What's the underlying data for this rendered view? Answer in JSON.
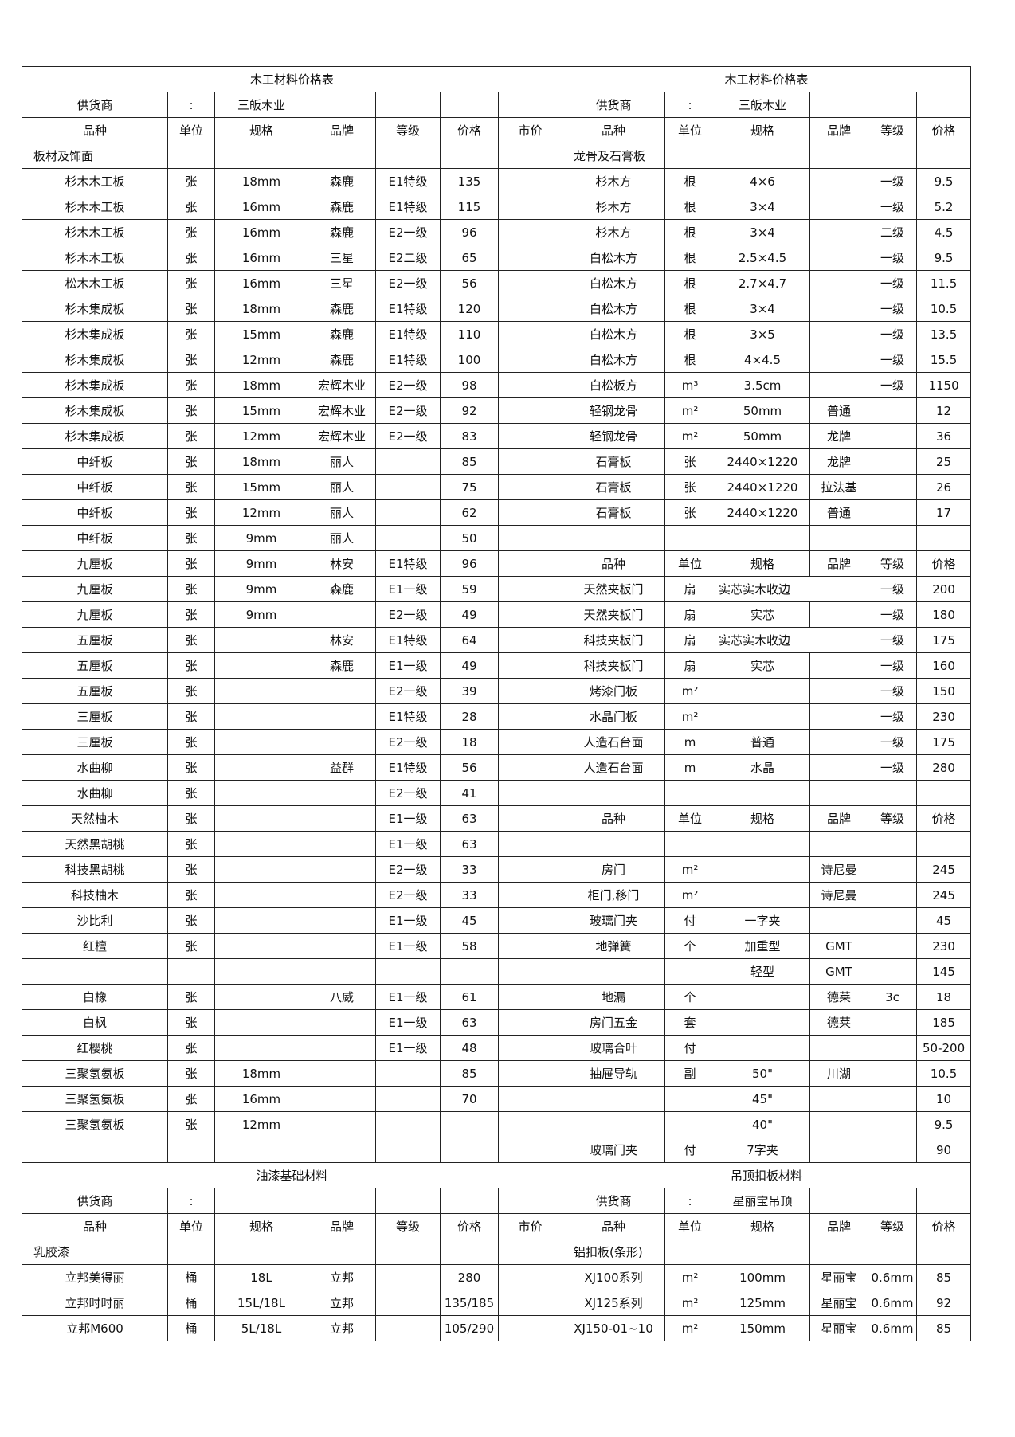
{
  "blocks": [
    {
      "title": "木工材料价格表",
      "rows": [
        [
          "供货商",
          ":",
          "三皈木业",
          null,
          null,
          null,
          null
        ],
        [
          "品种",
          "单位",
          "规格",
          "品牌",
          "等级",
          "价格",
          "市价"
        ],
        [
          "板材及饰面",
          null,
          null,
          null,
          null,
          null,
          null
        ],
        [
          "杉木木工板",
          "张",
          "18mm",
          "森鹿",
          "E1特级",
          135,
          null
        ],
        [
          "杉木木工板",
          "张",
          "16mm",
          "森鹿",
          "E1特级",
          115,
          null
        ],
        [
          "杉木木工板",
          "张",
          "16mm",
          "森鹿",
          "E2一级",
          96,
          null
        ],
        [
          "杉木木工板",
          "张",
          "16mm",
          "三星",
          "E2二级",
          65,
          null
        ],
        [
          "松木木工板",
          "张",
          "16mm",
          "三星",
          "E2一级",
          56,
          null
        ],
        [
          "杉木集成板",
          "张",
          "18mm",
          "森鹿",
          "E1特级",
          120,
          null
        ],
        [
          "杉木集成板",
          "张",
          "15mm",
          "森鹿",
          "E1特级",
          110,
          null
        ],
        [
          "杉木集成板",
          "张",
          "12mm",
          "森鹿",
          "E1特级",
          100,
          null
        ],
        [
          "杉木集成板",
          "张",
          "18mm",
          "宏辉木业",
          "E2一级",
          98,
          null
        ],
        [
          "杉木集成板",
          "张",
          "15mm",
          "宏辉木业",
          "E2一级",
          92,
          null
        ],
        [
          "杉木集成板",
          "张",
          "12mm",
          "宏辉木业",
          "E2一级",
          83,
          null
        ],
        [
          "中纤板",
          "张",
          "18mm",
          "丽人",
          null,
          85,
          null
        ],
        [
          "中纤板",
          "张",
          "15mm",
          "丽人",
          null,
          75,
          null
        ],
        [
          "中纤板",
          "张",
          "12mm",
          "丽人",
          null,
          62,
          null
        ],
        [
          "中纤板",
          "张",
          "9mm",
          "丽人",
          null,
          50,
          null
        ],
        [
          "九厘板",
          "张",
          "9mm",
          "林安",
          "E1特级",
          96,
          null
        ],
        [
          "九厘板",
          "张",
          "9mm",
          "森鹿",
          "E1一级",
          59,
          null
        ],
        [
          "九厘板",
          "张",
          "9mm",
          null,
          "E2一级",
          49,
          null
        ],
        [
          "五厘板",
          "张",
          null,
          "林安",
          "E1特级",
          64,
          null
        ],
        [
          "五厘板",
          "张",
          null,
          "森鹿",
          "E1一级",
          49,
          null
        ],
        [
          "五厘板",
          "张",
          null,
          null,
          "E2一级",
          39,
          null
        ],
        [
          "三厘板",
          "张",
          null,
          null,
          "E1特级",
          28,
          null
        ],
        [
          "三厘板",
          "张",
          null,
          null,
          "E2一级",
          18,
          null
        ],
        [
          "水曲柳",
          "张",
          null,
          "益群",
          "E1特级",
          56,
          null
        ],
        [
          "水曲柳",
          "张",
          null,
          null,
          "E2一级",
          41,
          null
        ],
        [
          "天然柚木",
          "张",
          null,
          null,
          "E1一级",
          63,
          null
        ],
        [
          "天然黑胡桃",
          "张",
          null,
          null,
          "E1一级",
          63,
          null
        ],
        [
          "科技黑胡桃",
          "张",
          null,
          null,
          "E2一级",
          33,
          null
        ],
        [
          "科技柚木",
          "张",
          null,
          null,
          "E2一级",
          33,
          null
        ],
        [
          "沙比利",
          "张",
          null,
          null,
          "E1一级",
          45,
          null
        ],
        [
          "红檀",
          "张",
          null,
          null,
          "E1一级",
          58,
          null
        ],
        [
          null,
          null,
          null,
          null,
          null,
          null,
          null
        ],
        [
          "白橡",
          "张",
          null,
          "八威",
          "E1一级",
          61,
          null
        ],
        [
          "白枫",
          "张",
          null,
          null,
          "E1一级",
          63,
          null
        ],
        [
          "红樱桃",
          "张",
          null,
          null,
          "E1一级",
          48,
          null
        ],
        [
          "三聚氢氨板",
          "张",
          "18mm",
          null,
          null,
          85,
          null
        ],
        [
          "三聚氢氨板",
          "张",
          "16mm",
          null,
          null,
          70,
          null
        ],
        [
          "三聚氢氨板",
          "张",
          "12mm",
          null,
          null,
          null,
          null
        ],
        [
          null,
          null,
          null,
          null,
          null,
          null,
          null
        ]
      ]
    },
    {
      "title": "木工材料价格表",
      "rows": [
        [
          "供货商",
          ":",
          "三皈木业",
          null,
          null,
          null
        ],
        [
          "品种",
          "单位",
          "规格",
          "品牌",
          "等级",
          "价格"
        ],
        [
          "龙骨及石膏板",
          null,
          null,
          null,
          null,
          null
        ],
        [
          "杉木方",
          "根",
          "4×6",
          null,
          "一级",
          9.5
        ],
        [
          "杉木方",
          "根",
          "3×4",
          null,
          "一级",
          5.2
        ],
        [
          "杉木方",
          "根",
          "3×4",
          null,
          "二级",
          4.5
        ],
        [
          "白松木方",
          "根",
          "2.5×4.5",
          null,
          "一级",
          9.5
        ],
        [
          "白松木方",
          "根",
          "2.7×4.7",
          null,
          "一级",
          11.5
        ],
        [
          "白松木方",
          "根",
          "3×4",
          null,
          "一级",
          10.5
        ],
        [
          "白松木方",
          "根",
          "3×5",
          null,
          "一级",
          13.5
        ],
        [
          "白松木方",
          "根",
          "4×4.5",
          null,
          "一级",
          15.5
        ],
        [
          "白松板方",
          "m³",
          "3.5cm",
          null,
          "一级",
          1150
        ],
        [
          "轻钢龙骨",
          "m²",
          "50mm",
          "普通",
          null,
          12
        ],
        [
          "轻钢龙骨",
          "m²",
          "50mm",
          "龙牌",
          null,
          36
        ],
        [
          "石膏板",
          "张",
          "2440×1220",
          "龙牌",
          null,
          25
        ],
        [
          "石膏板",
          "张",
          "2440×1220",
          "拉法基",
          null,
          26
        ],
        [
          "石膏板",
          "张",
          "2440×1220",
          "普通",
          null,
          17
        ],
        [
          null,
          null,
          null,
          null,
          null,
          null
        ],
        [
          "品种",
          "单位",
          "规格",
          "品牌",
          "等级",
          "价格"
        ],
        [
          "天然夹板门",
          "扇",
          {
            "text": "实芯实木收边",
            "colspan": 2
          },
          "一级",
          200
        ],
        [
          "天然夹板门",
          "扇",
          "实芯",
          null,
          "一级",
          180
        ],
        [
          "科技夹板门",
          "扇",
          {
            "text": "实芯实木收边",
            "colspan": 2
          },
          "一级",
          175
        ],
        [
          "科技夹板门",
          "扇",
          "实芯",
          null,
          "一级",
          160
        ],
        [
          "烤漆门板",
          "m²",
          null,
          null,
          "一级",
          150
        ],
        [
          "水晶门板",
          "m²",
          null,
          null,
          "一级",
          230
        ],
        [
          "人造石台面",
          "m",
          "普通",
          null,
          "一级",
          175
        ],
        [
          "人造石台面",
          "m",
          "水晶",
          null,
          "一级",
          280
        ],
        [
          null,
          null,
          null,
          null,
          null,
          null
        ],
        [
          "品种",
          "单位",
          "规格",
          "品牌",
          "等级",
          "价格"
        ],
        [
          null,
          null,
          null,
          null,
          null,
          null
        ],
        [
          "房门",
          "m²",
          null,
          "诗尼曼",
          null,
          245
        ],
        [
          "柜门,移门",
          "m²",
          null,
          "诗尼曼",
          null,
          245
        ],
        [
          "玻璃门夹",
          "付",
          "一字夹",
          null,
          null,
          45
        ],
        [
          "地弹簧",
          "个",
          "加重型",
          "GMT",
          null,
          230
        ],
        [
          null,
          null,
          "轻型",
          "GMT",
          null,
          145
        ],
        [
          "地漏",
          "个",
          null,
          "德莱",
          "3c",
          18
        ],
        [
          "房门五金",
          "套",
          null,
          "德莱",
          null,
          185
        ],
        [
          "玻璃合叶",
          "付",
          null,
          null,
          null,
          "50-200"
        ],
        [
          "抽屉导轨",
          "副",
          "50\"",
          "川湖",
          null,
          10.5
        ],
        [
          null,
          null,
          "45\"",
          null,
          null,
          10
        ],
        [
          null,
          null,
          "40\"",
          null,
          null,
          9.5
        ],
        [
          "玻璃门夹",
          "付",
          "7字夹",
          null,
          null,
          90
        ]
      ]
    },
    {
      "title": "油漆基础材料",
      "rows": [
        [
          "供货商",
          ":",
          null,
          null,
          null,
          null,
          null
        ],
        [
          "品种",
          "单位",
          "规格",
          "品牌",
          "等级",
          "价格",
          "市价"
        ],
        [
          "乳胶漆",
          null,
          null,
          null,
          null,
          null,
          null
        ],
        [
          "立邦美得丽",
          "桶",
          "18L",
          "立邦",
          null,
          280,
          null
        ],
        [
          "立邦时时丽",
          "桶",
          "15L/18L",
          "立邦",
          null,
          "135/185",
          null
        ],
        [
          "立邦M600",
          "桶",
          "5L/18L",
          "立邦",
          null,
          "105/290",
          null
        ]
      ]
    },
    {
      "title": "吊顶扣板材料",
      "rows": [
        [
          "供货商",
          ":",
          "星丽宝吊顶",
          null,
          null,
          null
        ],
        [
          "品种",
          "单位",
          "规格",
          "品牌",
          "等级",
          "价格"
        ],
        [
          "铝扣板(条形)",
          null,
          null,
          null,
          null,
          null
        ],
        [
          "XJ100系列",
          "m²",
          "100mm",
          "星丽宝",
          "0.6mm",
          85
        ],
        [
          "XJ125系列",
          "m²",
          "125mm",
          "星丽宝",
          "0.6mm",
          92
        ],
        [
          "XJ150-01~10",
          "m²",
          "150mm",
          "星丽宝",
          "0.6mm",
          85
        ]
      ]
    }
  ]
}
